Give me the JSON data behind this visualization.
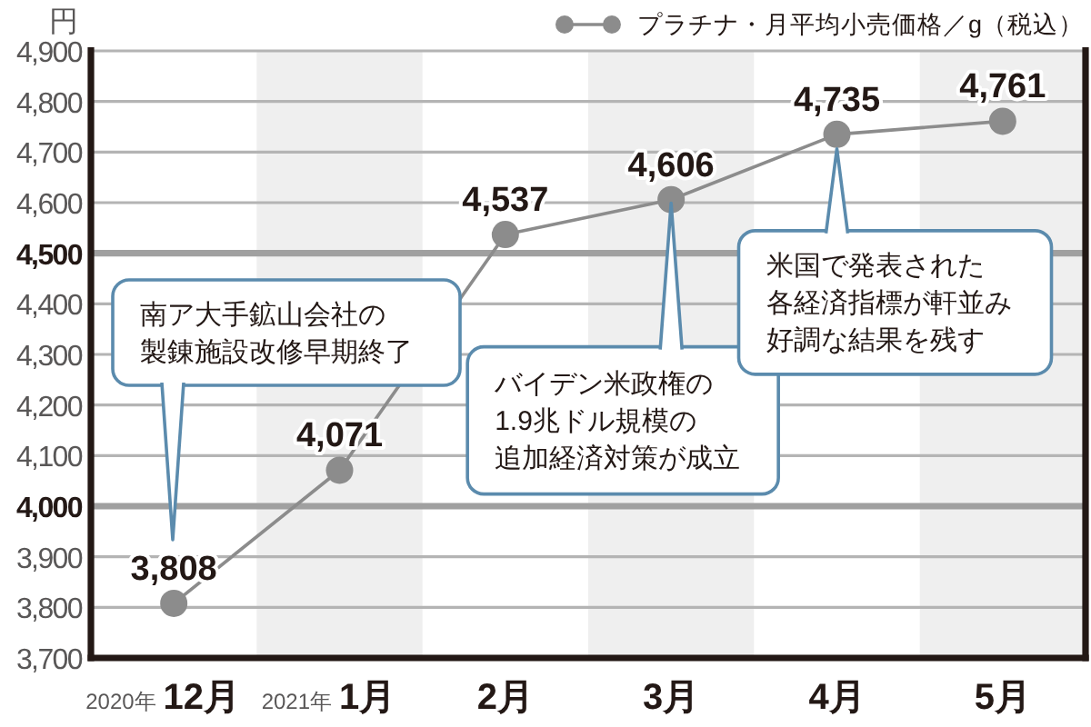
{
  "chart_data": {
    "type": "line",
    "ylabel": "円",
    "categories": [
      "2020年 12月",
      "2021年 1月",
      "2月",
      "3月",
      "4月",
      "5月"
    ],
    "series": [
      {
        "name": "プラチナ・月平均小売価格／g（税込）",
        "color": "#8c8c8c",
        "values": [
          3808,
          4071,
          4537,
          4606,
          4735,
          4761
        ],
        "value_labels": [
          "3,808",
          "4,071",
          "4,537",
          "4,606",
          "4,735",
          "4,761"
        ]
      }
    ],
    "ylim": [
      3700,
      4900
    ],
    "yticks": [
      {
        "value": 3700,
        "label": "3,700"
      },
      {
        "value": 3800,
        "label": "3,800"
      },
      {
        "value": 3900,
        "label": "3,900"
      },
      {
        "value": 4000,
        "label": "4,000"
      },
      {
        "value": 4100,
        "label": "4,100"
      },
      {
        "value": 4200,
        "label": "4,200"
      },
      {
        "value": 4300,
        "label": "4,300"
      },
      {
        "value": 4400,
        "label": "4,400"
      },
      {
        "value": 4500,
        "label": "4,500"
      },
      {
        "value": 4600,
        "label": "4,600"
      },
      {
        "value": 4700,
        "label": "4,700"
      },
      {
        "value": 4800,
        "label": "4,800"
      },
      {
        "value": 4900,
        "label": "4,900"
      }
    ],
    "grid": "y",
    "legend": "top right",
    "marker": "circle",
    "line_style": "solid",
    "bands": [
      {
        "axis": "x",
        "from": "2021年 1月",
        "to": "2021年 1月",
        "color": "#efefef"
      },
      {
        "axis": "x",
        "from": "3月",
        "to": "3月",
        "color": "#efefef"
      },
      {
        "axis": "x",
        "from": "5月",
        "to": "5月",
        "color": "#efefef"
      }
    ],
    "annotations": [
      "南ア大手鉱山会社の製錬施設改修早期終了",
      {
        "text": "バイデン米政権の1.9兆ドル規模の追加経済対策が成立",
        "x": "3月",
        "y": 4606
      },
      {
        "text": "米国で発表された各経済指標が軒並み好調な結果を残す",
        "x": "4月",
        "y": 4735
      }
    ]
  }
}
